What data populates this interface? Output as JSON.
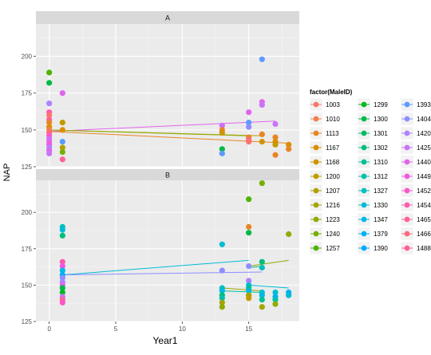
{
  "chart_data": {
    "type": "scatter",
    "xlabel": "Year1",
    "ylabel": "NAP",
    "xlim": [
      -1,
      18.8
    ],
    "ylim": [
      125,
      222
    ],
    "x_ticks": [
      0,
      5,
      10,
      15
    ],
    "y_ticks": [
      125,
      150,
      175,
      200
    ],
    "grid": true,
    "facet_by": "factor(MaleID)",
    "legend": {
      "title": "factor(MaleID)",
      "position": "right",
      "columns": 3,
      "entries": [
        {
          "label": "1003",
          "color": "#F8766D"
        },
        {
          "label": "1010",
          "color": "#F07F4C"
        },
        {
          "label": "1113",
          "color": "#E88526"
        },
        {
          "label": "1167",
          "color": "#DC8E00"
        },
        {
          "label": "1168",
          "color": "#D09400"
        },
        {
          "label": "1200",
          "color": "#C29A00"
        },
        {
          "label": "1207",
          "color": "#B39F00"
        },
        {
          "label": "1216",
          "color": "#A3A500"
        },
        {
          "label": "1223",
          "color": "#8EAB00"
        },
        {
          "label": "1240",
          "color": "#74B000"
        },
        {
          "label": "1257",
          "color": "#4EB400"
        },
        {
          "label": "1299",
          "color": "#00B81F"
        },
        {
          "label": "1300",
          "color": "#00BA47"
        },
        {
          "label": "1301",
          "color": "#00BC63"
        },
        {
          "label": "1302",
          "color": "#00BE7D"
        },
        {
          "label": "1310",
          "color": "#00BF95"
        },
        {
          "label": "1312",
          "color": "#00C0AB"
        },
        {
          "label": "1327",
          "color": "#00BFC0"
        },
        {
          "label": "1330",
          "color": "#00BCD5"
        },
        {
          "label": "1347",
          "color": "#00B8E5"
        },
        {
          "label": "1379",
          "color": "#00B1F4"
        },
        {
          "label": "1390",
          "color": "#00A9FF"
        },
        {
          "label": "1393",
          "color": "#5C9BFF"
        },
        {
          "label": "1404",
          "color": "#8C8FFF"
        },
        {
          "label": "1420",
          "color": "#AF82FF"
        },
        {
          "label": "1425",
          "color": "#CB72F8"
        },
        {
          "label": "1440",
          "color": "#E165EC"
        },
        {
          "label": "1449",
          "color": "#F058DC"
        },
        {
          "label": "1452",
          "color": "#FA57C6"
        },
        {
          "label": "1454",
          "color": "#FF5BAF"
        },
        {
          "label": "1465",
          "color": "#FF6196"
        },
        {
          "label": "1466",
          "color": "#FF6A7E"
        },
        {
          "label": "1488",
          "color": "#FF5F96"
        }
      ]
    },
    "panels": [
      {
        "strip": "A",
        "ylim": [
          125,
          222
        ],
        "points": [
          {
            "x": 0,
            "y": 189,
            "c": "#4EB400"
          },
          {
            "x": 0,
            "y": 182,
            "c": "#00BA47"
          },
          {
            "x": 0,
            "y": 168,
            "c": "#AF82FF"
          },
          {
            "x": 0,
            "y": 162,
            "c": "#FF5BAF"
          },
          {
            "x": 0,
            "y": 160,
            "c": "#F8766D"
          },
          {
            "x": 0,
            "y": 157,
            "c": "#FF6196"
          },
          {
            "x": 0,
            "y": 155,
            "c": "#E88526"
          },
          {
            "x": 0,
            "y": 152,
            "c": "#DC8E00"
          },
          {
            "x": 0,
            "y": 150,
            "c": "#F07F4C"
          },
          {
            "x": 0,
            "y": 148,
            "c": "#FF6A7E"
          },
          {
            "x": 0,
            "y": 146,
            "c": "#FA57C6"
          },
          {
            "x": 0,
            "y": 144,
            "c": "#CB72F8"
          },
          {
            "x": 0,
            "y": 142,
            "c": "#E165EC"
          },
          {
            "x": 0,
            "y": 140,
            "c": "#F058DC"
          },
          {
            "x": 0,
            "y": 138,
            "c": "#AF82FF"
          },
          {
            "x": 0,
            "y": 136,
            "c": "#E165EC"
          },
          {
            "x": 0,
            "y": 134,
            "c": "#CB72F8"
          },
          {
            "x": 1,
            "y": 175,
            "c": "#E165EC"
          },
          {
            "x": 1,
            "y": 155,
            "c": "#C29A00"
          },
          {
            "x": 1,
            "y": 150,
            "c": "#DC8E00"
          },
          {
            "x": 1,
            "y": 142,
            "c": "#5C9BFF"
          },
          {
            "x": 1,
            "y": 138,
            "c": "#B39F00"
          },
          {
            "x": 1,
            "y": 135,
            "c": "#74B000"
          },
          {
            "x": 1,
            "y": 130,
            "c": "#FF6196"
          },
          {
            "x": 13,
            "y": 153,
            "c": "#CB72F8"
          },
          {
            "x": 13,
            "y": 150,
            "c": "#E88526"
          },
          {
            "x": 13,
            "y": 148,
            "c": "#D09400"
          },
          {
            "x": 13,
            "y": 137,
            "c": "#00BA47"
          },
          {
            "x": 13,
            "y": 134,
            "c": "#5C9BFF"
          },
          {
            "x": 15,
            "y": 162,
            "c": "#E165EC"
          },
          {
            "x": 15,
            "y": 155,
            "c": "#5C9BFF"
          },
          {
            "x": 15,
            "y": 152,
            "c": "#8C8FFF"
          },
          {
            "x": 15,
            "y": 145,
            "c": "#E88526"
          },
          {
            "x": 15,
            "y": 143,
            "c": "#FF6196"
          },
          {
            "x": 15,
            "y": 142,
            "c": "#F8766D"
          },
          {
            "x": 16,
            "y": 198,
            "c": "#5C9BFF"
          },
          {
            "x": 16,
            "y": 169,
            "c": "#E165EC"
          },
          {
            "x": 16,
            "y": 167,
            "c": "#CB72F8"
          },
          {
            "x": 16,
            "y": 147,
            "c": "#E88526"
          },
          {
            "x": 16,
            "y": 142,
            "c": "#D09400"
          },
          {
            "x": 17,
            "y": 154,
            "c": "#CB72F8"
          },
          {
            "x": 17,
            "y": 145,
            "c": "#E88526"
          },
          {
            "x": 17,
            "y": 142,
            "c": "#DC8E00"
          },
          {
            "x": 17,
            "y": 140,
            "c": "#C29A00"
          },
          {
            "x": 17,
            "y": 133,
            "c": "#E88526"
          },
          {
            "x": 18,
            "y": 140,
            "c": "#DC8E00"
          },
          {
            "x": 18,
            "y": 137,
            "c": "#E88526"
          }
        ],
        "lines": [
          {
            "x": [
              0,
              17
            ],
            "y": [
              149,
              156
            ],
            "c": "#E165EC"
          },
          {
            "x": [
              0,
              18
            ],
            "y": [
              149,
              141
            ],
            "c": "#E88526"
          },
          {
            "x": [
              0,
              16
            ],
            "y": [
              150,
              146
            ],
            "c": "#B39F00"
          },
          {
            "x": [
              0,
              15
            ],
            "y": [
              150,
              146
            ],
            "c": "#8EAB00"
          }
        ]
      },
      {
        "strip": "B",
        "ylim": [
          125,
          222
        ],
        "points": [
          {
            "x": 1,
            "y": 190,
            "c": "#00BFC0"
          },
          {
            "x": 1,
            "y": 188,
            "c": "#00BCD5"
          },
          {
            "x": 1,
            "y": 184,
            "c": "#00BE7D"
          },
          {
            "x": 1,
            "y": 166,
            "c": "#FF5BAF"
          },
          {
            "x": 1,
            "y": 163,
            "c": "#F058DC"
          },
          {
            "x": 1,
            "y": 160,
            "c": "#00B8E5"
          },
          {
            "x": 1,
            "y": 157,
            "c": "#00B1F4"
          },
          {
            "x": 1,
            "y": 155,
            "c": "#8C8FFF"
          },
          {
            "x": 1,
            "y": 152,
            "c": "#AF82FF"
          },
          {
            "x": 1,
            "y": 150,
            "c": "#E165EC"
          },
          {
            "x": 1,
            "y": 148,
            "c": "#00BA47"
          },
          {
            "x": 1,
            "y": 145,
            "c": "#00B81F"
          },
          {
            "x": 1,
            "y": 142,
            "c": "#CB72F8"
          },
          {
            "x": 1,
            "y": 140,
            "c": "#FF6196"
          },
          {
            "x": 1,
            "y": 138,
            "c": "#FA57C6"
          },
          {
            "x": 13,
            "y": 178,
            "c": "#00BCD5"
          },
          {
            "x": 13,
            "y": 160,
            "c": "#8C8FFF"
          },
          {
            "x": 13,
            "y": 148,
            "c": "#00BFC0"
          },
          {
            "x": 13,
            "y": 146,
            "c": "#00B8E5"
          },
          {
            "x": 13,
            "y": 143,
            "c": "#00BE7D"
          },
          {
            "x": 13,
            "y": 141,
            "c": "#00C0AB"
          },
          {
            "x": 13,
            "y": 138,
            "c": "#A3A500"
          },
          {
            "x": 13,
            "y": 135,
            "c": "#8EAB00"
          },
          {
            "x": 15,
            "y": 209,
            "c": "#4EB400"
          },
          {
            "x": 15,
            "y": 190,
            "c": "#E88526"
          },
          {
            "x": 15,
            "y": 186,
            "c": "#00BA47"
          },
          {
            "x": 15,
            "y": 163,
            "c": "#8C8FFF"
          },
          {
            "x": 15,
            "y": 153,
            "c": "#AF82FF"
          },
          {
            "x": 15,
            "y": 150,
            "c": "#00BCD5"
          },
          {
            "x": 15,
            "y": 148,
            "c": "#00BF95"
          },
          {
            "x": 15,
            "y": 146,
            "c": "#00B8E5"
          },
          {
            "x": 15,
            "y": 143,
            "c": "#A3A500"
          },
          {
            "x": 15,
            "y": 141,
            "c": "#C29A00"
          },
          {
            "x": 16,
            "y": 220,
            "c": "#74B000"
          },
          {
            "x": 16,
            "y": 166,
            "c": "#00BE7D"
          },
          {
            "x": 16,
            "y": 162,
            "c": "#00BFC0"
          },
          {
            "x": 16,
            "y": 145,
            "c": "#00BCD5"
          },
          {
            "x": 16,
            "y": 143,
            "c": "#00B8E5"
          },
          {
            "x": 16,
            "y": 140,
            "c": "#00BF95"
          },
          {
            "x": 16,
            "y": 135,
            "c": "#A3A500"
          },
          {
            "x": 17,
            "y": 145,
            "c": "#00BCD5"
          },
          {
            "x": 17,
            "y": 142,
            "c": "#00B1F4"
          },
          {
            "x": 17,
            "y": 140,
            "c": "#00C0AB"
          },
          {
            "x": 17,
            "y": 137,
            "c": "#8EAB00"
          },
          {
            "x": 18,
            "y": 185,
            "c": "#8EAB00"
          },
          {
            "x": 18,
            "y": 145,
            "c": "#00B1F4"
          },
          {
            "x": 18,
            "y": 143,
            "c": "#00BCD5"
          }
        ],
        "lines": [
          {
            "x": [
              1,
              15
            ],
            "y": [
              157,
              167
            ],
            "c": "#00BCD5"
          },
          {
            "x": [
              1,
              16
            ],
            "y": [
              157,
              159
            ],
            "c": "#8C8FFF"
          },
          {
            "x": [
              15,
              18
            ],
            "y": [
              163,
              167
            ],
            "c": "#8EAB00"
          },
          {
            "x": [
              15,
              18
            ],
            "y": [
              150,
              148
            ],
            "c": "#00BCD5"
          },
          {
            "x": [
              13,
              16
            ],
            "y": [
              148,
              146
            ],
            "c": "#A3A500"
          },
          {
            "x": [
              13,
              16
            ],
            "y": [
              146,
              145
            ],
            "c": "#00BF95"
          },
          {
            "x": [
              15,
              16
            ],
            "y": [
              162,
              163
            ],
            "c": "#00BE7D"
          }
        ]
      }
    ]
  }
}
